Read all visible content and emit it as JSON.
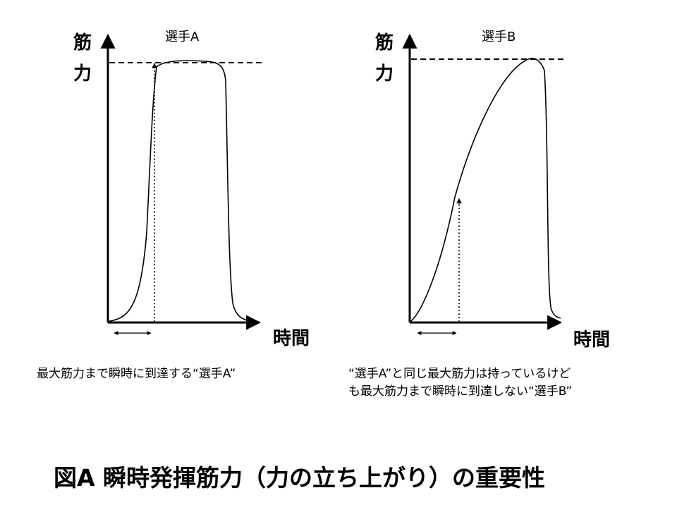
{
  "panels": [
    {
      "title": "選手A",
      "ylabel_top": "筋",
      "ylabel_bottom": "力",
      "xlabel": "時間",
      "caption_lines": [
        "最大筋力まで瞬時に到達する“選手A”"
      ]
    },
    {
      "title": "選手B",
      "ylabel_top": "筋",
      "ylabel_bottom": "力",
      "xlabel": "時間",
      "caption_lines": [
        "“選手A”と同じ最大筋力は持っているけど",
        "も最大筋力まで瞬時に到達しない“選手B”"
      ]
    }
  ],
  "figure_title": "図A 瞬時発揮筋力（力の立ち上がり）の重要性"
}
